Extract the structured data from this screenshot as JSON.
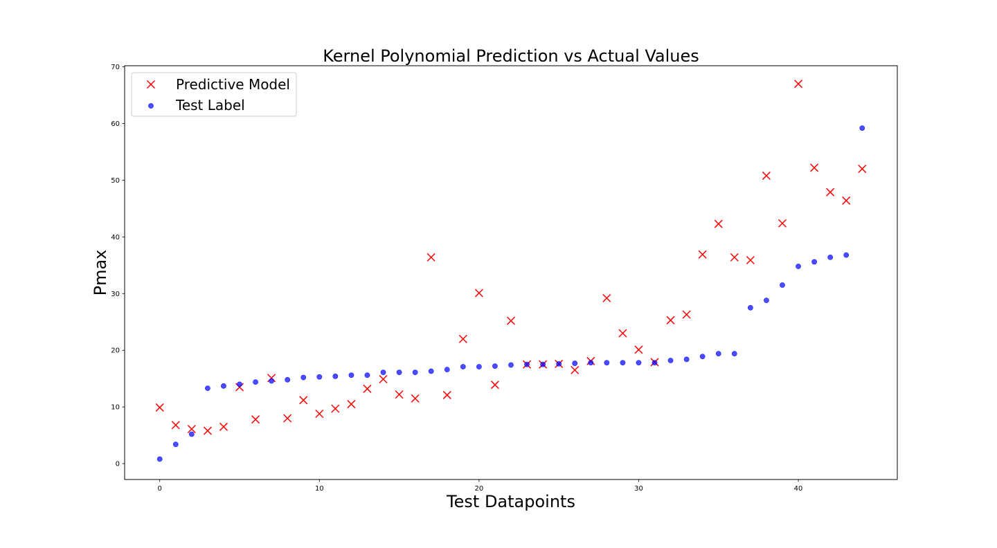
{
  "chart_data": {
    "type": "scatter",
    "title": "Kernel Polynomial Prediction vs Actual Values",
    "xlabel": "Test Datapoints",
    "ylabel": "Pmax",
    "xlim": [
      -2.2,
      46.2
    ],
    "ylim": [
      -2.8,
      70.2
    ],
    "xticks": [
      0,
      10,
      20,
      30,
      40
    ],
    "yticks": [
      0,
      10,
      20,
      30,
      40,
      50,
      60,
      70
    ],
    "grid": false,
    "legend_position": "top-left",
    "series": [
      {
        "name": "Predictive Model",
        "marker": "x",
        "color": "#ff0000",
        "x": [
          0,
          1,
          2,
          3,
          4,
          5,
          6,
          7,
          8,
          9,
          10,
          11,
          12,
          13,
          14,
          15,
          16,
          17,
          18,
          19,
          20,
          21,
          22,
          23,
          24,
          25,
          26,
          27,
          28,
          29,
          30,
          31,
          32,
          33,
          34,
          35,
          36,
          37,
          38,
          39,
          40,
          41,
          42,
          43,
          44
        ],
        "y": [
          9.9,
          6.8,
          6.1,
          5.8,
          6.5,
          13.5,
          7.8,
          15.1,
          8.0,
          11.2,
          8.8,
          9.7,
          10.5,
          13.2,
          14.9,
          12.2,
          11.5,
          36.4,
          12.1,
          22.0,
          30.1,
          13.9,
          25.2,
          17.5,
          17.5,
          17.6,
          16.5,
          18.1,
          29.2,
          23.0,
          20.1,
          17.9,
          25.3,
          26.3,
          36.9,
          42.3,
          36.4,
          35.9,
          50.8,
          42.4,
          67.0,
          52.2,
          47.9,
          46.4,
          52.0
        ]
      },
      {
        "name": "Test Label",
        "marker": "o",
        "color": "#0000ff",
        "x": [
          0,
          1,
          2,
          3,
          4,
          5,
          6,
          7,
          8,
          9,
          10,
          11,
          12,
          13,
          14,
          15,
          16,
          17,
          18,
          19,
          20,
          21,
          22,
          23,
          24,
          25,
          26,
          27,
          28,
          29,
          30,
          31,
          32,
          33,
          34,
          35,
          36,
          37,
          38,
          39,
          40,
          41,
          42,
          43,
          44
        ],
        "y": [
          0.8,
          3.4,
          5.2,
          13.3,
          13.7,
          14.0,
          14.4,
          14.6,
          14.8,
          15.2,
          15.3,
          15.4,
          15.6,
          15.6,
          16.1,
          16.1,
          16.1,
          16.3,
          16.6,
          17.1,
          17.1,
          17.2,
          17.4,
          17.5,
          17.5,
          17.6,
          17.7,
          17.8,
          17.8,
          17.8,
          17.8,
          17.8,
          18.2,
          18.4,
          18.9,
          19.4,
          19.4,
          27.5,
          28.8,
          31.5,
          34.8,
          35.6,
          36.4,
          36.8,
          59.2
        ]
      }
    ]
  }
}
